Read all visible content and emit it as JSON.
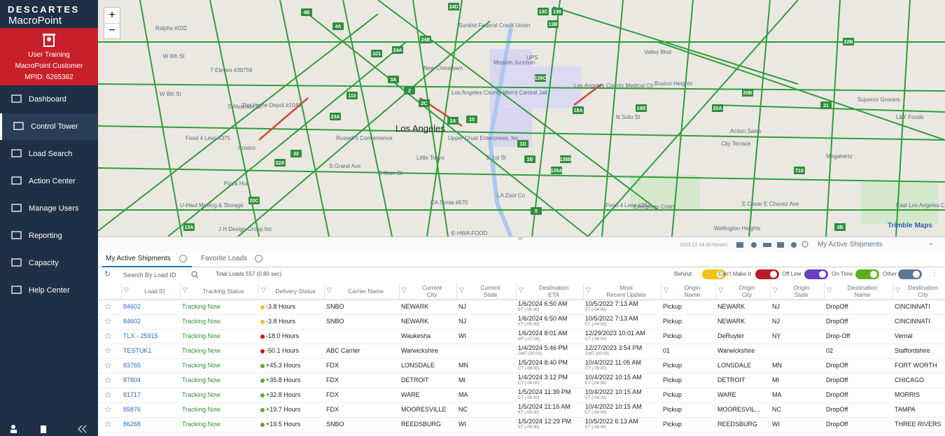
{
  "sidebar": {
    "brand": "DESCARTES",
    "product": "MacroPoint",
    "account": {
      "name": "User Training",
      "company": "MacroPoint Customer",
      "mpid": "MPID: 6265362"
    },
    "nav": [
      "Dashboard",
      "Control Tower",
      "Load Search",
      "Action Center",
      "Manage Users",
      "Reporting",
      "Capacity",
      "Help Center"
    ],
    "active_nav": 1
  },
  "map": {
    "labels": [
      "Los Angeles",
      "W 6th St",
      "W 8th St",
      "Valley Blvd",
      "New Chinatown",
      "Mission Junction",
      "UPS",
      "Los Angeles County Medical Ctr",
      "Los Angeles County Men's Central Jail",
      "City Terrace",
      "Action Sales",
      "Megahertz",
      "L&Y Foods",
      "E Cesar E Chavez Ave",
      "East Los Angeles Community College",
      "Evergreen Cmtry",
      "Wellington Heights",
      "Little Tokyo",
      "E 1st St",
      "Upper Crust Enterprises, Inc",
      "The Home Depot #1048",
      "Pizza Hut",
      "S Alvarado St",
      "S Grand Ave",
      "S Main St",
      "N Soto St",
      "Food 4 Less #375",
      "Food 4 Less #363",
      "Russell's Convenience",
      "Ralphs #032",
      "7-Eleven #39759",
      "Costco",
      "J H Design Group Inc",
      "CA Sonia #670",
      "E-HWA FOOD",
      "LA Zoot Co",
      "U-Haul Moving & Storage",
      "Boston Heights",
      "Superior Grocers",
      "Sunkist Federal Credit Union"
    ],
    "shields": [
      "4B",
      "4A",
      "24D",
      "13C",
      "13B",
      "24B",
      "24A",
      "101",
      "110",
      "3A",
      "2",
      "2C",
      "23A",
      "22",
      "22A",
      "20C",
      "13A",
      "2A",
      "10",
      "1D",
      "1B",
      "135C",
      "18A",
      "19B",
      "20B",
      "20A",
      "21",
      "22B",
      "135B",
      "135A",
      "5",
      "710",
      "3B",
      "136"
    ],
    "attribution": "Trimble Maps",
    "zoom_in": "+",
    "zoom_out": "−",
    "version": "2023.12.14.45.Reset1",
    "view_select": "My Active Shipments"
  },
  "tabs": [
    "My Active Shipments",
    "Favorite Loads"
  ],
  "active_tab": 0,
  "toolbar": {
    "search_placeholder": "Search By Load ID",
    "total": "Total Loads 557 (0.80 sec)",
    "filters": [
      {
        "label": "Behind",
        "color": "#f2c40f"
      },
      {
        "label": "Can't Make It",
        "color": "#b81d24"
      },
      {
        "label": "Off Line",
        "color": "#6a3fc0"
      },
      {
        "label": "On Time",
        "color": "#5cae1f"
      },
      {
        "label": "Other",
        "color": "#5b7a9a"
      }
    ]
  },
  "table": {
    "headers": [
      [
        "Load ID"
      ],
      [
        "Tracking Status"
      ],
      [
        "Delivery Status"
      ],
      [
        "Carrier Name"
      ],
      [
        "Current",
        "City"
      ],
      [
        "Current",
        "State"
      ],
      [
        "Destination",
        "ETA"
      ],
      [
        "Most",
        "Recent Update"
      ],
      [
        "Origin",
        "Name"
      ],
      [
        "Origin",
        "City"
      ],
      [
        "Origin",
        "State"
      ],
      [
        "Destination",
        "Name"
      ],
      [
        "Destination",
        "City"
      ]
    ],
    "rows": [
      [
        "84602",
        "Tracking Now",
        {
          "dot": "#f2c40f",
          "text": "-3.8 Hours"
        },
        "SNBO",
        "NEWARK",
        "NJ",
        {
          "date": "1/6/2024  6:50 AM",
          "tz": "ET (-05:00)"
        },
        {
          "date": "10/5/2022  7:13 AM",
          "tz": "ET (-04:00)"
        },
        "Pickup",
        "NEWARK",
        "NJ",
        "DropOff",
        "CINCINNATI"
      ],
      [
        "84602",
        "Tracking Now",
        {
          "dot": "#f2c40f",
          "text": "-3.8 Hours"
        },
        "SNBO",
        "NEWARK",
        "NJ",
        {
          "date": "1/6/2024  6:50 AM",
          "tz": "ET (-05:00)"
        },
        {
          "date": "10/5/2022  7:13 AM",
          "tz": "ET (-04:00)"
        },
        "Pickup",
        "NEWARK",
        "NJ",
        "DropOff",
        "CINCINNATI"
      ],
      [
        "TLX - 25915",
        "Tracking Now",
        {
          "dot": "#b81d24",
          "text": "-18.0 Hours"
        },
        null,
        "Waukesha",
        "WI",
        {
          "date": "1/6/2024  8:01 AM",
          "tz": "MT (-07:00)"
        },
        {
          "date": "12/29/2023  10:01 AM",
          "tz": "CT (-06:00)"
        },
        "Pickup",
        "DeRuyter",
        "NY",
        "Drop-Off",
        "Vernal"
      ],
      [
        "TESTUK1",
        "Tracking Now",
        {
          "dot": "#b81d24",
          "text": "-50.1 Hours"
        },
        "ABC Carrier",
        "Warwickshire",
        null,
        {
          "date": "1/4/2024  5:46 PM",
          "tz": "GMT (00:00)"
        },
        {
          "date": "12/27/2023  3:54 PM",
          "tz": "GMT (00:00)"
        },
        "01",
        "Warwickshire",
        null,
        "02",
        "Staffordshire"
      ],
      [
        "83765",
        "Tracking Now",
        {
          "dot": "#5cae1f",
          "text": "+45.3 Hours"
        },
        "FDX",
        "LONSDALE",
        "MN",
        {
          "date": "1/5/2024  8:40 PM",
          "tz": "CT (-06:00)"
        },
        {
          "date": "10/4/2022  11:05 AM",
          "tz": "CT (-05:00)"
        },
        "Pickup",
        "LONSDALE",
        "MN",
        "DropOff",
        "FORT WORTH"
      ],
      [
        "87804",
        "Tracking Now",
        {
          "dot": "#5cae1f",
          "text": "+35.8 Hours"
        },
        "FDX",
        "DETROIT",
        "MI",
        {
          "date": "1/4/2024  3:12 PM",
          "tz": "CT (-06:00)"
        },
        {
          "date": "10/4/2022  10:15 AM",
          "tz": "ET (-04:00)"
        },
        "Pickup",
        "DETROIT",
        "MI",
        "DropOff",
        "CHICAGO"
      ],
      [
        "81717",
        "Tracking Now",
        {
          "dot": "#5cae1f",
          "text": "+32.8 Hours"
        },
        "FDX",
        "WARE",
        "MA",
        {
          "date": "1/5/2024  11:39 PM",
          "tz": "CT (-06:00)"
        },
        {
          "date": "10/4/2022  10:15 AM",
          "tz": "ET (-04:00)"
        },
        "Pickup",
        "WARE",
        "MA",
        "DropOff",
        "MORRIS"
      ],
      [
        "85876",
        "Tracking Now",
        {
          "dot": "#5cae1f",
          "text": "+19.7 Hours"
        },
        "FDX",
        "MOORESVILLE",
        "NC",
        {
          "date": "1/5/2024  11:16 AM",
          "tz": "ET (-05:00)"
        },
        {
          "date": "10/4/2022  10:15 AM",
          "tz": "ET (-04:00)"
        },
        "Pickup",
        "MOORESVIL...",
        "NC",
        "DropOff",
        "TAMPA"
      ],
      [
        "86268",
        "Tracking Now",
        {
          "dot": "#5cae1f",
          "text": "+19.5 Hours"
        },
        "SNBO",
        "REEDSBURG",
        "WI",
        {
          "date": "1/5/2024  12:29 PM",
          "tz": "ET (-05:00)"
        },
        {
          "date": "10/5/2022  6:13 AM",
          "tz": "ET (-04:00)"
        },
        "Pickup",
        "REEDSBURG",
        "WI",
        "DropOff",
        "THREE RIVERS"
      ]
    ]
  }
}
